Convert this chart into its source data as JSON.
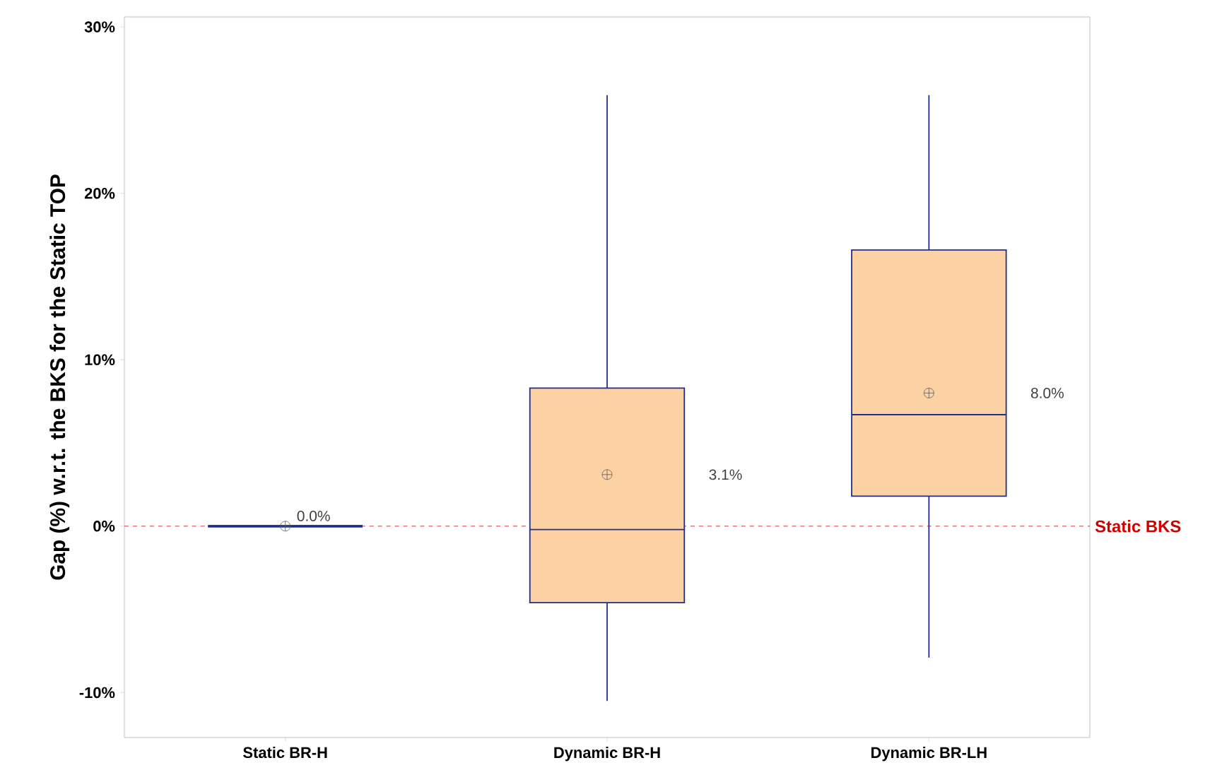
{
  "chart_data": {
    "type": "box",
    "ylabel": "Gap (%) w.r.t. the BKS for the Static TOP",
    "categories": [
      "Static BR-H",
      "Dynamic BR-H",
      "Dynamic BR-LH"
    ],
    "colors": [
      "#1f2f8f",
      "#fcd1a4",
      "#fcd1a4"
    ],
    "boxes": [
      {
        "low": 0,
        "q1": 0,
        "median": 0,
        "q3": 0,
        "high": 0,
        "mean": 0
      },
      {
        "low": -10.5,
        "q1": -4.6,
        "median": -0.2,
        "q3": 8.3,
        "high": 25.9,
        "mean": 3.1
      },
      {
        "low": -7.9,
        "q1": 1.8,
        "median": 6.7,
        "q3": 16.6,
        "high": 25.9,
        "mean": 8.0
      }
    ],
    "annotations": [
      "0.0%",
      "3.1%",
      "8.0%"
    ],
    "ref_lines": [
      {
        "axis": "y",
        "value": 0,
        "label": "Static BKS",
        "color": "#d00000",
        "line_style": "dashed"
      }
    ],
    "ylim": [
      -12.7,
      30.6
    ],
    "yticks": [
      {
        "value": -10,
        "label": "-10%"
      },
      {
        "value": 0,
        "label": "0%"
      },
      {
        "value": 10,
        "label": "10%"
      },
      {
        "value": 20,
        "label": "20%"
      },
      {
        "value": 30,
        "label": "30%"
      }
    ]
  }
}
